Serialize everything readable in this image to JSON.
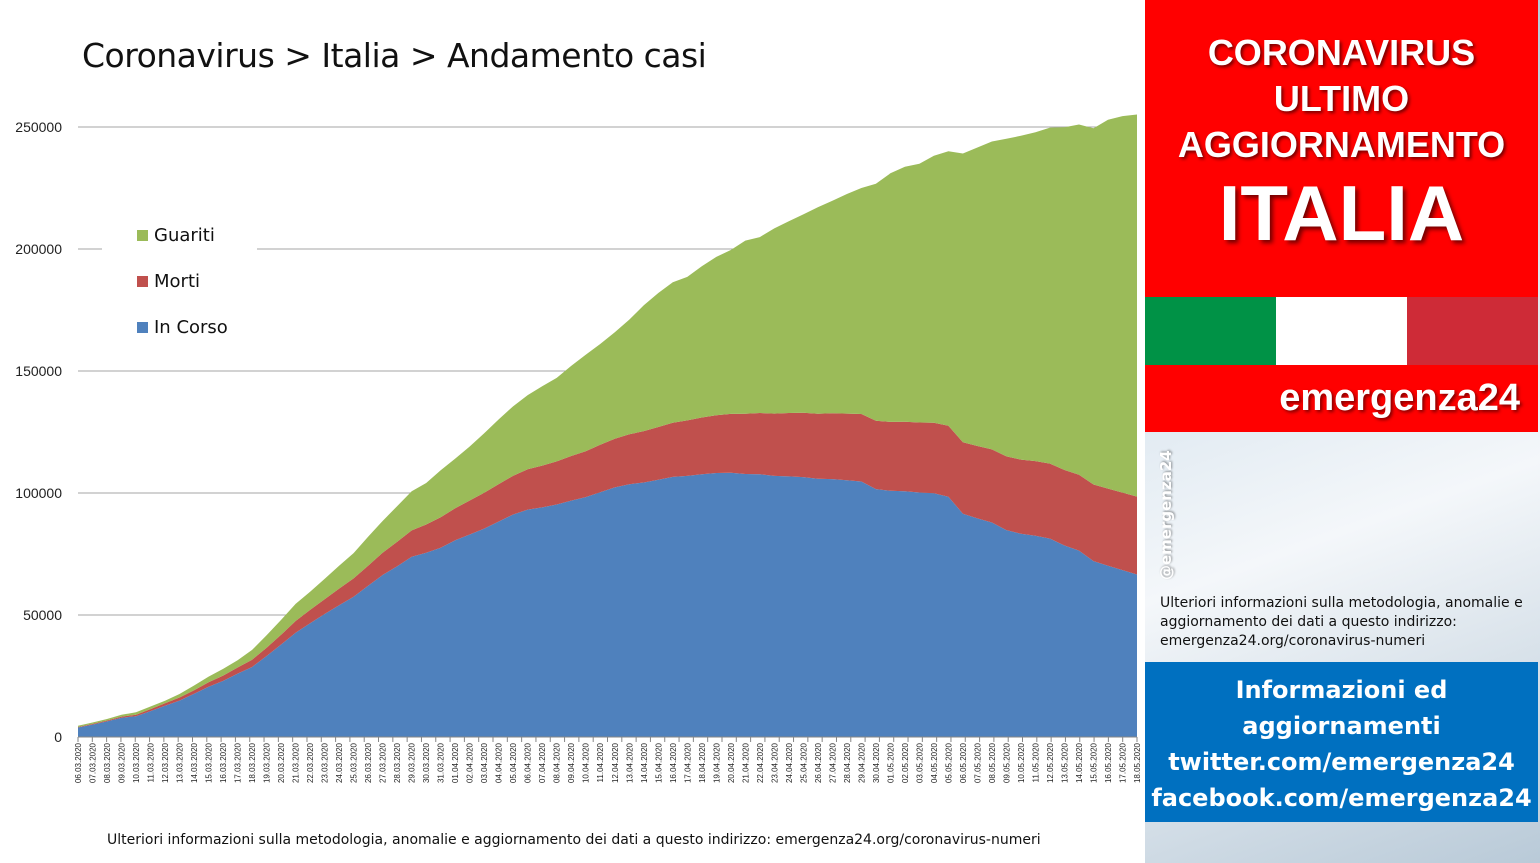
{
  "title": "Coronavirus > Italia > Andamento casi",
  "footer_note": "Ulteriori informazioni sulla metodologia, anomalie e aggiornamento dei dati a questo indirizzo: emergenza24.org/coronavirus-numeri",
  "sidebar": {
    "headline_lines": [
      "CORONAVIRUS",
      "ULTIMO",
      "AGGIORNAMENTO"
    ],
    "country": "ITALIA",
    "brand": "emergenza24",
    "handle": "@emergenza24",
    "note": "Ulteriori informazioni sulla metodologia, anomalie e aggiornamento dei dati a questo indirizzo: emergenza24.org/coronavirus-numeri",
    "info_lines": [
      "Informazioni ed",
      "aggiornamenti",
      "twitter.com/emergenza24",
      "facebook.com/emergenza24"
    ],
    "flag_colors": [
      "#009246",
      "#ffffff",
      "#ce2b37"
    ],
    "brand_red": "#ff0000",
    "info_blue": "#0070c0"
  },
  "chart_data": {
    "type": "area",
    "stacked": true,
    "title": "Coronavirus > Italia > Andamento casi",
    "xlabel": "",
    "ylabel": "",
    "ylim": [
      0,
      250000
    ],
    "yticks": [
      0,
      50000,
      100000,
      150000,
      200000,
      250000
    ],
    "grid": true,
    "legend_position": "top-left",
    "start_date": "2020-03-06",
    "categories": [
      "06.03.2020",
      "07.03.2020",
      "08.03.2020",
      "09.03.2020",
      "10.03.2020",
      "11.03.2020",
      "12.03.2020",
      "13.03.2020",
      "14.03.2020",
      "15.03.2020",
      "16.03.2020",
      "17.03.2020",
      "18.03.2020",
      "19.03.2020",
      "20.03.2020",
      "21.03.2020",
      "22.03.2020",
      "23.03.2020",
      "24.03.2020",
      "25.03.2020",
      "26.03.2020",
      "27.03.2020",
      "28.03.2020",
      "29.03.2020",
      "30.03.2020",
      "31.03.2020",
      "01.04.2020",
      "02.04.2020",
      "03.04.2020",
      "04.04.2020",
      "05.04.2020",
      "06.04.2020",
      "07.04.2020",
      "08.04.2020",
      "09.04.2020",
      "10.04.2020",
      "11.04.2020",
      "12.04.2020",
      "13.04.2020",
      "14.04.2020",
      "15.04.2020",
      "16.04.2020",
      "17.04.2020",
      "18.04.2020",
      "19.04.2020",
      "20.04.2020",
      "21.04.2020",
      "22.04.2020",
      "23.04.2020",
      "24.04.2020",
      "25.04.2020",
      "26.04.2020",
      "27.04.2020",
      "28.04.2020",
      "29.04.2020",
      "30.04.2020",
      "01.05.2020",
      "02.05.2020",
      "03.05.2020",
      "04.05.2020",
      "05.05.2020",
      "06.05.2020",
      "07.05.2020",
      "08.05.2020",
      "09.05.2020",
      "10.05.2020",
      "11.05.2020",
      "12.05.2020",
      "13.05.2020",
      "14.05.2020",
      "15.05.2020",
      "16.05.2020",
      "17.05.2020",
      "18.05.2020"
    ],
    "series": [
      {
        "name": "In Corso",
        "color": "#4f81bd",
        "values": [
          3900,
          5100,
          6400,
          7900,
          8500,
          10600,
          12800,
          14900,
          17700,
          20600,
          23000,
          26000,
          28700,
          33200,
          37900,
          42700,
          46600,
          50400,
          54000,
          57500,
          62000,
          66400,
          70000,
          73900,
          75500,
          77600,
          80600,
          83000,
          85400,
          88300,
          91200,
          93200,
          94100,
          95300,
          96900,
          98300,
          100300,
          102300,
          103600,
          104300,
          105400,
          106600,
          107000,
          107700,
          108200,
          108300,
          107800,
          107700,
          107000,
          106800,
          106500,
          105800,
          105700,
          105200,
          104700,
          101600,
          100900,
          100700,
          100200,
          99900,
          98500,
          91500,
          89600,
          87900,
          84800,
          83300,
          82500,
          81300,
          78500,
          76400,
          72100,
          70200,
          68400,
          66600
        ]
      },
      {
        "name": "Morti",
        "color": "#c0504d",
        "values": [
          200,
          250,
          370,
          460,
          630,
          830,
          1020,
          1270,
          1440,
          1810,
          2160,
          2500,
          2980,
          3410,
          4030,
          4830,
          5480,
          6080,
          6820,
          7500,
          8170,
          9140,
          10020,
          10780,
          11590,
          12430,
          13160,
          13920,
          14680,
          15360,
          15890,
          16520,
          17130,
          17670,
          18280,
          18850,
          19470,
          19900,
          20470,
          21070,
          21650,
          22170,
          22750,
          23230,
          23660,
          24110,
          24650,
          25090,
          25550,
          25970,
          26380,
          26640,
          26980,
          27360,
          27680,
          27970,
          28240,
          28480,
          28710,
          28890,
          29080,
          29320,
          29680,
          29960,
          30200,
          30400,
          30560,
          30740,
          30910,
          31110,
          31370,
          31610,
          31760,
          31910
        ]
      },
      {
        "name": "Guariti",
        "color": "#9bbb59",
        "values": [
          520,
          590,
          620,
          720,
          1000,
          1050,
          1050,
          1440,
          1970,
          2340,
          2750,
          2940,
          4030,
          5120,
          6070,
          7020,
          7430,
          8330,
          9360,
          10360,
          11900,
          12990,
          14630,
          16060,
          17000,
          19300,
          20330,
          22150,
          24390,
          26490,
          28500,
          30400,
          32550,
          34210,
          36900,
          39500,
          41300,
          43700,
          47000,
          51600,
          54900,
          57600,
          58800,
          62000,
          64900,
          67200,
          71000,
          72100,
          75900,
          78600,
          81300,
          84700,
          87100,
          90000,
          92600,
          97200,
          101900,
          104500,
          106000,
          109400,
          112500,
          118300,
          122300,
          126200,
          130200,
          132700,
          134800,
          137700,
          140500,
          143500,
          146000,
          151200,
          154300,
          156600
        ]
      }
    ]
  }
}
